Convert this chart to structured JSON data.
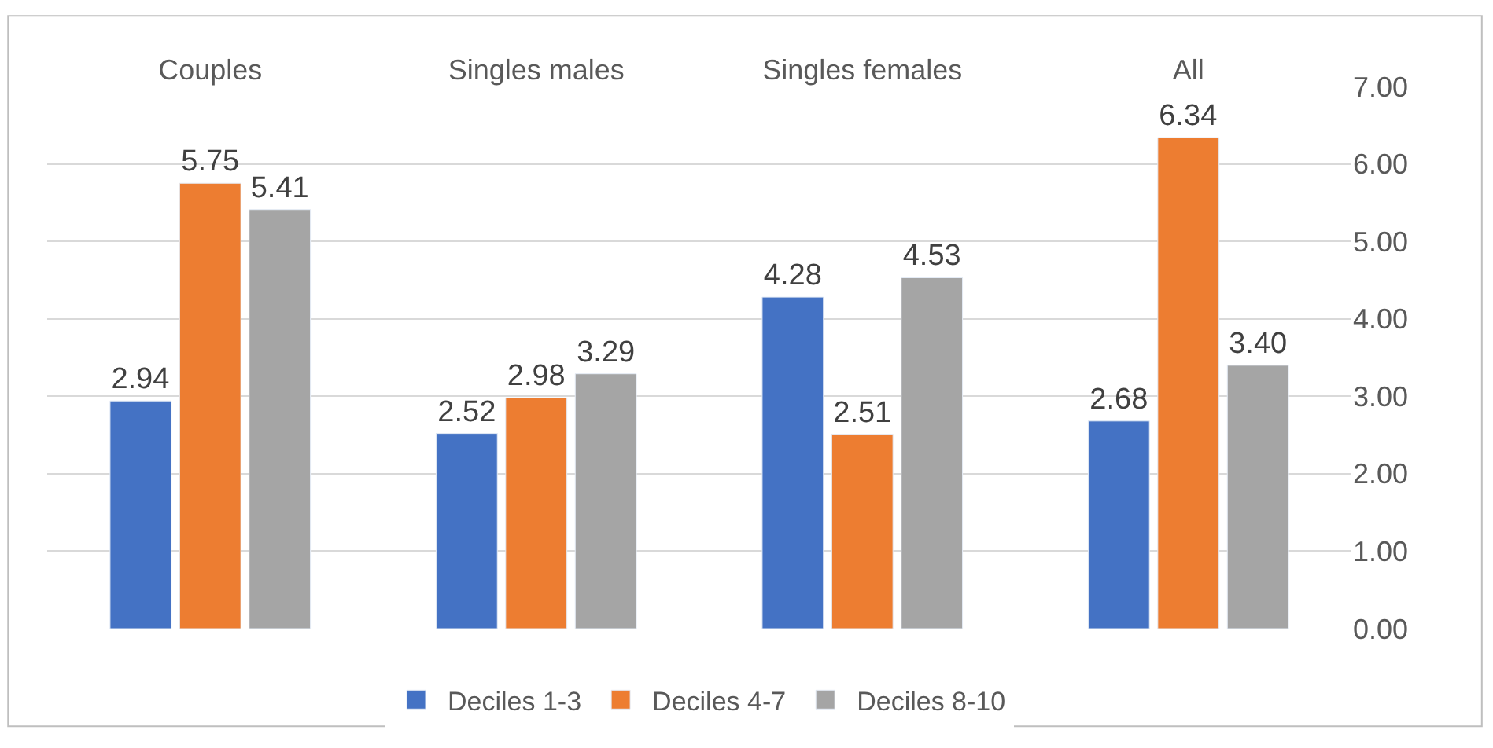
{
  "chart_data": {
    "type": "bar",
    "categories": [
      "Couples",
      "Singles males",
      "Singles females",
      "All"
    ],
    "series": [
      {
        "name": "Deciles 1-3",
        "color": "#4472c4",
        "values": [
          2.94,
          2.52,
          4.28,
          2.68
        ],
        "value_labels": [
          "2.94",
          "2.52",
          "4.28",
          "2.68"
        ]
      },
      {
        "name": "Deciles 4-7",
        "color": "#ed7d31",
        "values": [
          5.75,
          2.98,
          2.51,
          6.34
        ],
        "value_labels": [
          "5.75",
          "2.98",
          "2.51",
          "6.34"
        ]
      },
      {
        "name": "Deciles 8-10",
        "color": "#a5a5a5",
        "values": [
          5.41,
          3.29,
          4.53,
          3.4
        ],
        "value_labels": [
          "5.41",
          "3.29",
          "4.53",
          "3.40"
        ]
      }
    ],
    "ylim": [
      0,
      7
    ],
    "yticks": [
      {
        "value": 0,
        "label": "0.00"
      },
      {
        "value": 1,
        "label": "1.00"
      },
      {
        "value": 2,
        "label": "2.00"
      },
      {
        "value": 3,
        "label": "3.00"
      },
      {
        "value": 4,
        "label": "4.00"
      },
      {
        "value": 5,
        "label": "5.00"
      },
      {
        "value": 6,
        "label": "6.00"
      },
      {
        "value": 7,
        "label": "7.00"
      }
    ],
    "grid": "y",
    "legend": "bottom"
  }
}
